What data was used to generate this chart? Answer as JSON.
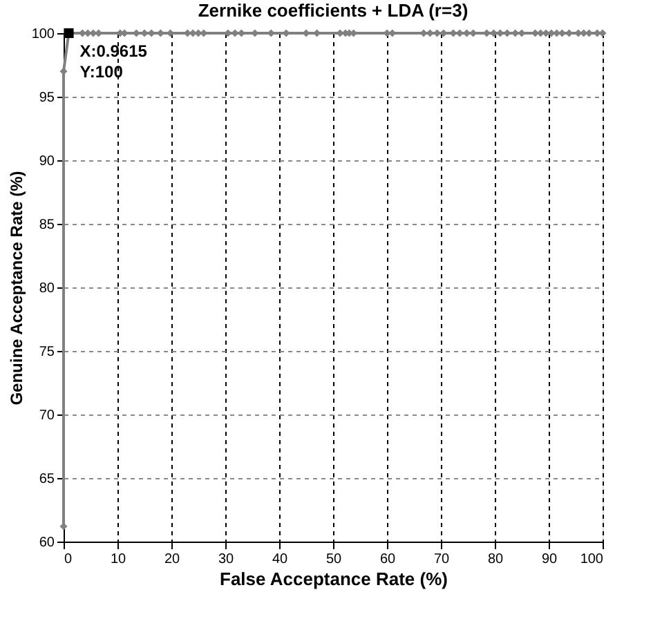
{
  "chart_data": {
    "type": "line",
    "title": "Zernike coefficients + LDA (r=3)",
    "xlabel": "False Acceptance Rate (%)",
    "ylabel": "Genuine Acceptance Rate (%)",
    "series": [
      {
        "color": "#808080",
        "x": [
          0,
          0,
          0.9615,
          3.5,
          4.5,
          5.5,
          6.5,
          10.5,
          11.3,
          13.5,
          15,
          16.3,
          18,
          19.8,
          23,
          24,
          25,
          26,
          30.5,
          31.8,
          33,
          35.5,
          38.5,
          41.3,
          45,
          47,
          51.3,
          52.3,
          53,
          53.8,
          60,
          61,
          66.8,
          68,
          69.3,
          70.5,
          72.3,
          73.5,
          74.8,
          76,
          78.5,
          79.8,
          81,
          82.3,
          83.8,
          85,
          87.5,
          88.5,
          89.5,
          90.5,
          91.5,
          92.5,
          93.8,
          95.5,
          96.5,
          97.5,
          99,
          100
        ],
        "values": [
          61.2,
          97,
          100,
          100,
          100,
          100,
          100,
          100,
          100,
          100,
          100,
          100,
          100,
          100,
          100,
          100,
          100,
          100,
          100,
          100,
          100,
          100,
          100,
          100,
          100,
          100,
          100,
          100,
          100,
          100,
          100,
          100,
          100,
          100,
          100,
          100,
          100,
          100,
          100,
          100,
          100,
          100,
          100,
          100,
          100,
          100,
          100,
          100,
          100,
          100,
          100,
          100,
          100,
          100,
          100,
          100,
          100,
          100
        ]
      }
    ],
    "xlim": [
      0,
      100
    ],
    "xticks": [
      0,
      10,
      20,
      30,
      40,
      50,
      60,
      70,
      80,
      90,
      100
    ],
    "ylim": [
      60,
      100
    ],
    "yticks": [
      60,
      65,
      70,
      75,
      80,
      85,
      90,
      95,
      100
    ],
    "grid": true,
    "marker": "diamond",
    "line_style": "solid",
    "annotations": [
      {
        "text": "X:0.9615\nY:100",
        "x": 0.9615,
        "y": 100
      }
    ]
  }
}
